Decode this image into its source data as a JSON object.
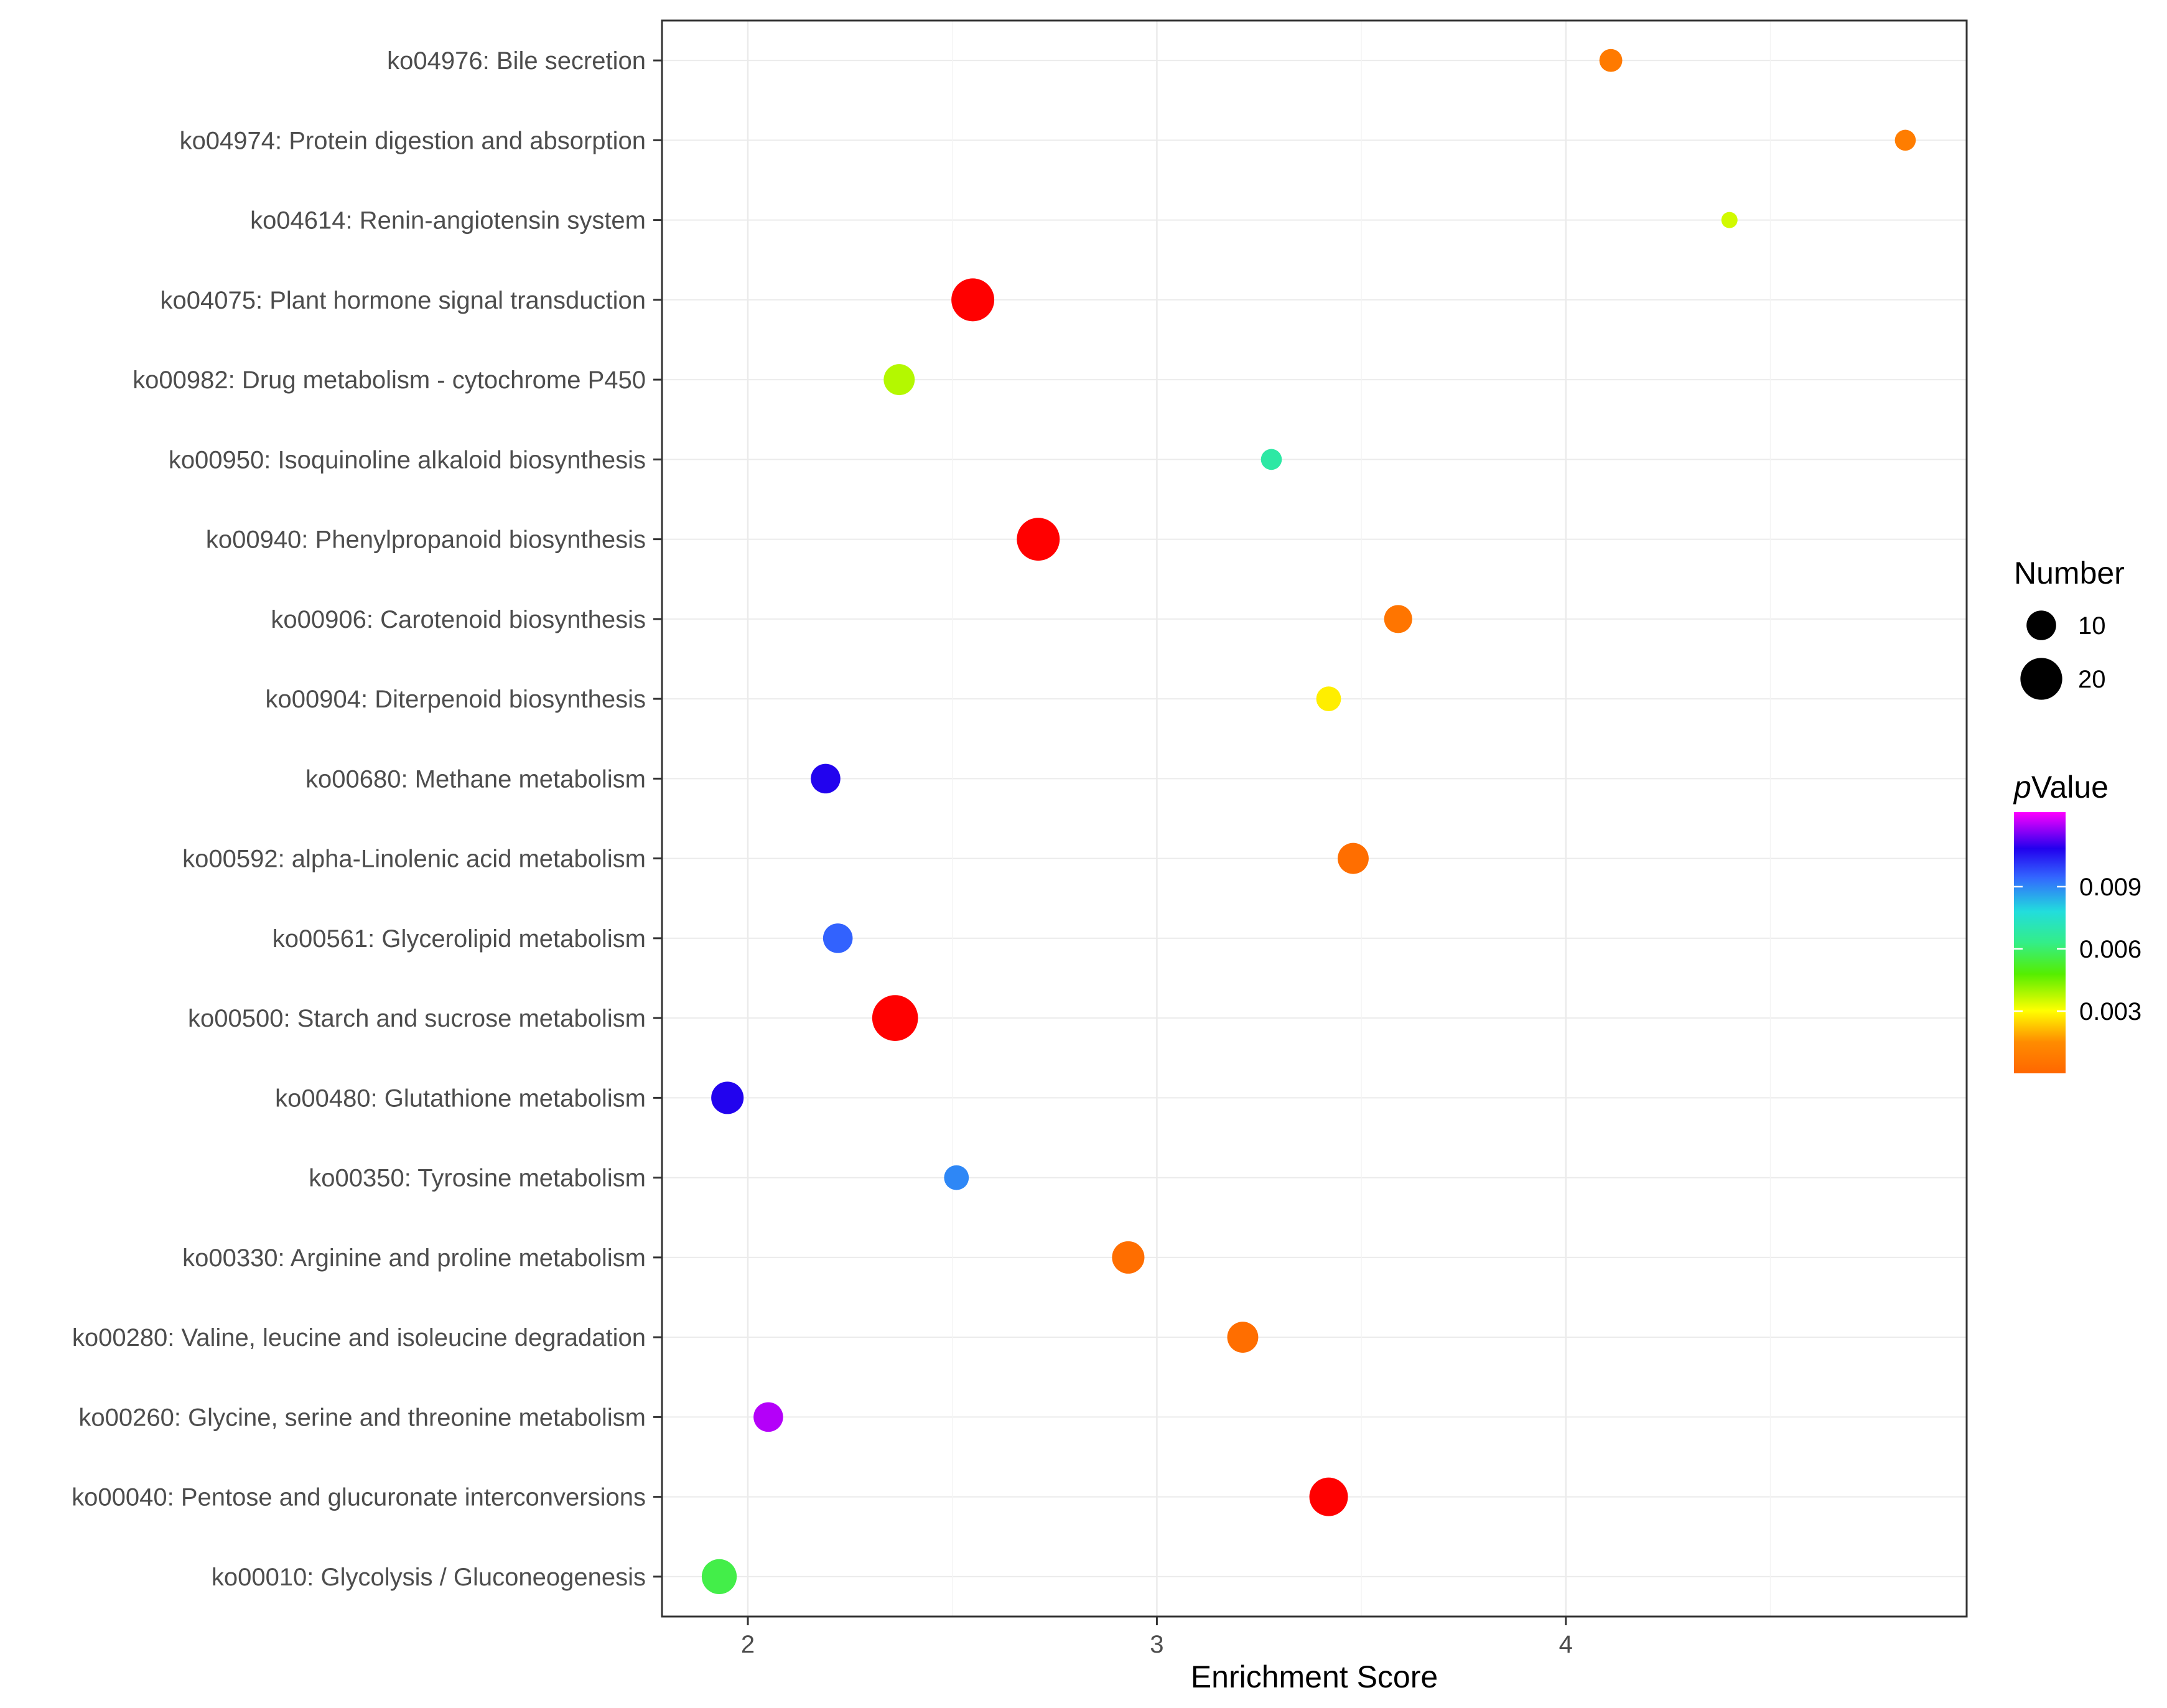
{
  "chart_data": {
    "type": "scatter",
    "title": "",
    "xlabel": "Enrichment Score",
    "ylabel": "",
    "xlim": [
      1.79,
      4.98
    ],
    "xticks": [
      2,
      3,
      4
    ],
    "grid": true,
    "categories": [
      "ko04976: Bile secretion",
      "ko04974: Protein digestion and absorption",
      "ko04614: Renin-angiotensin system",
      "ko04075: Plant hormone signal transduction",
      "ko00982: Drug metabolism - cytochrome P450",
      "ko00950: Isoquinoline alkaloid biosynthesis",
      "ko00940: Phenylpropanoid biosynthesis",
      "ko00906: Carotenoid biosynthesis",
      "ko00904: Diterpenoid biosynthesis",
      "ko00680: Methane metabolism",
      "ko00592: alpha-Linolenic acid metabolism",
      "ko00561: Glycerolipid metabolism",
      "ko00500: Starch and sucrose metabolism",
      "ko00480: Glutathione metabolism",
      "ko00350: Tyrosine metabolism",
      "ko00330: Arginine and proline metabolism",
      "ko00280: Valine, leucine and isoleucine degradation",
      "ko00260: Glycine, serine and threonine metabolism",
      "ko00040: Pentose and glucuronate interconversions",
      "ko00010: Glycolysis / Gluconeogenesis"
    ],
    "points": [
      {
        "category": "ko04976: Bile secretion",
        "x": 4.11,
        "number": 6,
        "pvalue": 0.0008
      },
      {
        "category": "ko04974: Protein digestion and absorption",
        "x": 4.83,
        "number": 5,
        "pvalue": 0.0009
      },
      {
        "category": "ko04614: Renin-angiotensin system",
        "x": 4.4,
        "number": 3,
        "pvalue": 0.0035
      },
      {
        "category": "ko04075: Plant hormone signal transduction",
        "x": 2.55,
        "number": 21,
        "pvalue": 5e-05
      },
      {
        "category": "ko00982: Drug metabolism - cytochrome P450",
        "x": 2.37,
        "number": 11,
        "pvalue": 0.0038
      },
      {
        "category": "ko00950: Isoquinoline alkaloid biosynthesis",
        "x": 3.28,
        "number": 5,
        "pvalue": 0.0068
      },
      {
        "category": "ko00940: Phenylpropanoid biosynthesis",
        "x": 2.71,
        "number": 21,
        "pvalue": 5e-05
      },
      {
        "category": "ko00906: Carotenoid biosynthesis",
        "x": 3.59,
        "number": 9,
        "pvalue": 0.0006
      },
      {
        "category": "ko00904: Diterpenoid biosynthesis",
        "x": 3.42,
        "number": 7,
        "pvalue": 0.0028
      },
      {
        "category": "ko00680: Methane metabolism",
        "x": 2.19,
        "number": 10,
        "pvalue": 0.0108
      },
      {
        "category": "ko00592: alpha-Linolenic acid metabolism",
        "x": 3.48,
        "number": 11,
        "pvalue": 0.0003
      },
      {
        "category": "ko00561: Glycerolipid metabolism",
        "x": 2.22,
        "number": 10,
        "pvalue": 0.0095
      },
      {
        "category": "ko00500: Starch and sucrose metabolism",
        "x": 2.36,
        "number": 24,
        "pvalue": 5e-05
      },
      {
        "category": "ko00480: Glutathione metabolism",
        "x": 1.95,
        "number": 12,
        "pvalue": 0.0108
      },
      {
        "category": "ko00350: Tyrosine metabolism",
        "x": 2.51,
        "number": 7,
        "pvalue": 0.009
      },
      {
        "category": "ko00330: Arginine and proline metabolism",
        "x": 2.93,
        "number": 12,
        "pvalue": 0.0003
      },
      {
        "category": "ko00280: Valine, leucine and isoleucine degradation",
        "x": 3.21,
        "number": 11,
        "pvalue": 0.0003
      },
      {
        "category": "ko00260: Glycine, serine and threonine metabolism",
        "x": 2.05,
        "number": 10,
        "pvalue": 0.012
      },
      {
        "category": "ko00040: Pentose and glucuronate interconversions",
        "x": 3.42,
        "number": 17,
        "pvalue": 5e-05
      },
      {
        "category": "ko00010: Glycolysis / Gluconeogenesis",
        "x": 1.93,
        "number": 14,
        "pvalue": 0.0056
      }
    ],
    "legend": {
      "size_title": "Number",
      "size_breaks": [
        10,
        20
      ],
      "color_title_prefix": "p",
      "color_title_suffix": "Value",
      "color_breaks": [
        0.003,
        0.006,
        0.009
      ],
      "color_break_labels": [
        "0.003",
        "0.006",
        "0.009"
      ],
      "color_range": [
        0.0,
        0.0126
      ],
      "placement": "right"
    }
  }
}
